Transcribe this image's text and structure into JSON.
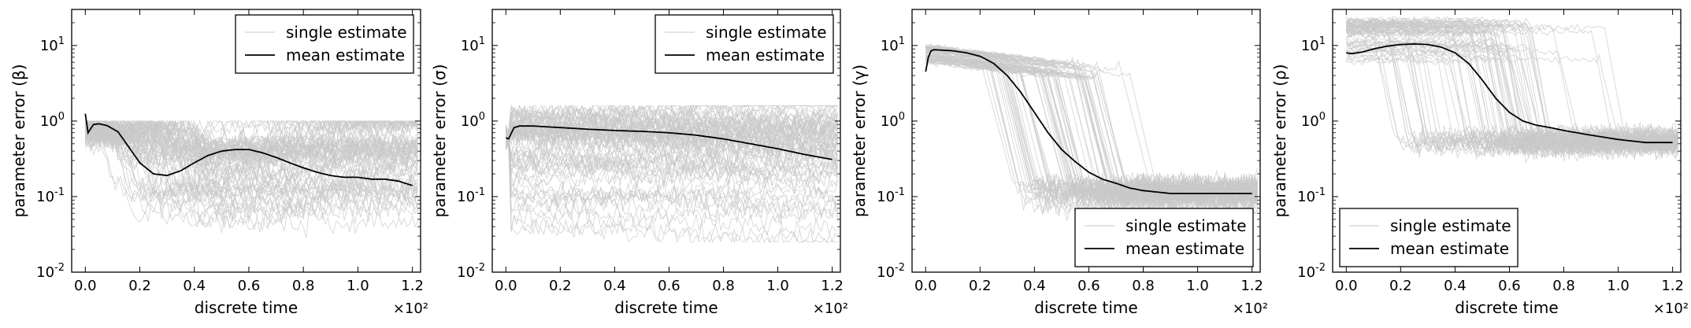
{
  "chart_data": [
    {
      "type": "line",
      "ylabel": "parameter error (β)",
      "xlabel": "discrete time",
      "x_multiplier": "×10²",
      "xlim": [
        -5,
        123
      ],
      "ylim": [
        0.01,
        30
      ],
      "yscale": "log",
      "xticks": [
        0,
        20,
        40,
        60,
        80,
        100,
        120
      ],
      "xtick_labels": [
        "0.0",
        "0.2",
        "0.4",
        "0.6",
        "0.8",
        "1.0",
        "1.2"
      ],
      "yticks": [
        0.01,
        0.1,
        1,
        10
      ],
      "legend_position": "top-right",
      "legend": [
        "single estimate",
        "mean estimate"
      ],
      "colors": {
        "single": "#c8c8c8",
        "mean": "#000000"
      },
      "series": [
        {
          "name": "mean estimate",
          "x": [
            0,
            1,
            3,
            5,
            8,
            12,
            16,
            20,
            25,
            30,
            35,
            40,
            45,
            50,
            55,
            60,
            65,
            70,
            75,
            80,
            85,
            90,
            95,
            100,
            105,
            110,
            115,
            120
          ],
          "y": [
            1.25,
            0.7,
            0.9,
            0.92,
            0.87,
            0.72,
            0.45,
            0.28,
            0.2,
            0.19,
            0.22,
            0.28,
            0.35,
            0.4,
            0.42,
            0.42,
            0.38,
            0.33,
            0.28,
            0.24,
            0.21,
            0.19,
            0.18,
            0.18,
            0.17,
            0.17,
            0.16,
            0.14
          ]
        }
      ]
    },
    {
      "type": "line",
      "ylabel": "parameter error (σ)",
      "xlabel": "discrete time",
      "x_multiplier": "×10²",
      "xlim": [
        -5,
        123
      ],
      "ylim": [
        0.01,
        30
      ],
      "yscale": "log",
      "xticks": [
        0,
        20,
        40,
        60,
        80,
        100,
        120
      ],
      "xtick_labels": [
        "0.0",
        "0.2",
        "0.4",
        "0.6",
        "0.8",
        "1.0",
        "1.2"
      ],
      "yticks": [
        0.01,
        0.1,
        1,
        10
      ],
      "legend_position": "top-right",
      "legend": [
        "single estimate",
        "mean estimate"
      ],
      "colors": {
        "single": "#c8c8c8",
        "mean": "#000000"
      },
      "series": [
        {
          "name": "mean estimate",
          "x": [
            0,
            1,
            3,
            5,
            10,
            20,
            30,
            40,
            50,
            60,
            70,
            80,
            90,
            100,
            110,
            120
          ],
          "y": [
            0.6,
            0.58,
            0.82,
            0.86,
            0.86,
            0.82,
            0.78,
            0.75,
            0.73,
            0.7,
            0.65,
            0.58,
            0.5,
            0.43,
            0.36,
            0.31
          ]
        }
      ]
    },
    {
      "type": "line",
      "ylabel": "parameter error (γ)",
      "xlabel": "discrete time",
      "x_multiplier": "×10²",
      "xlim": [
        -5,
        123
      ],
      "ylim": [
        0.01,
        30
      ],
      "yscale": "log",
      "xticks": [
        0,
        20,
        40,
        60,
        80,
        100,
        120
      ],
      "xtick_labels": [
        "0.0",
        "0.2",
        "0.4",
        "0.6",
        "0.8",
        "1.0",
        "1.2"
      ],
      "yticks": [
        0.01,
        0.1,
        1,
        10
      ],
      "legend_position": "bottom-right",
      "legend": [
        "single estimate",
        "mean estimate"
      ],
      "colors": {
        "single": "#c8c8c8",
        "mean": "#000000"
      },
      "series": [
        {
          "name": "mean estimate",
          "x": [
            0,
            1,
            2,
            3,
            5,
            10,
            15,
            20,
            25,
            30,
            35,
            40,
            45,
            50,
            55,
            60,
            65,
            70,
            75,
            80,
            85,
            90,
            95,
            100,
            110,
            120
          ],
          "y": [
            4.5,
            7.0,
            8.5,
            8.8,
            8.7,
            8.5,
            8.0,
            7.2,
            5.8,
            4.0,
            2.4,
            1.3,
            0.7,
            0.42,
            0.29,
            0.21,
            0.17,
            0.15,
            0.13,
            0.12,
            0.115,
            0.11,
            0.11,
            0.11,
            0.11,
            0.11
          ]
        }
      ]
    },
    {
      "type": "line",
      "ylabel": "parameter error (ρ)",
      "xlabel": "discrete time",
      "x_multiplier": "×10²",
      "xlim": [
        -5,
        123
      ],
      "ylim": [
        0.01,
        30
      ],
      "yscale": "log",
      "xticks": [
        0,
        20,
        40,
        60,
        80,
        100,
        120
      ],
      "xtick_labels": [
        "0.0",
        "0.2",
        "0.4",
        "0.6",
        "0.8",
        "1.0",
        "1.2"
      ],
      "yticks": [
        0.01,
        0.1,
        1,
        10
      ],
      "legend_position": "bottom-left",
      "legend": [
        "single estimate",
        "mean estimate"
      ],
      "colors": {
        "single": "#c8c8c8",
        "mean": "#000000"
      },
      "series": [
        {
          "name": "mean estimate",
          "x": [
            0,
            2,
            4,
            6,
            10,
            15,
            20,
            25,
            30,
            35,
            40,
            45,
            50,
            55,
            60,
            65,
            70,
            75,
            80,
            90,
            100,
            110,
            120
          ],
          "y": [
            8.0,
            7.8,
            8.0,
            8.2,
            9.0,
            9.8,
            10.3,
            10.5,
            10.3,
            9.5,
            8.0,
            5.8,
            3.5,
            2.0,
            1.3,
            1.0,
            0.88,
            0.82,
            0.75,
            0.65,
            0.57,
            0.52,
            0.52
          ]
        }
      ]
    }
  ]
}
